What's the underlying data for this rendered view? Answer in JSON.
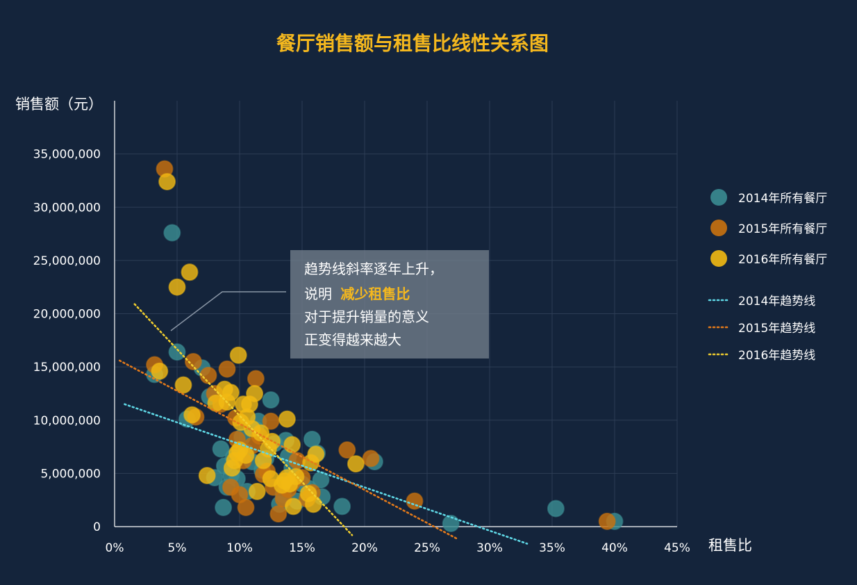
{
  "chart_data": {
    "type": "scatter",
    "title": "餐厅销售额与租售比线性关系图",
    "xlabel": "租售比",
    "ylabel": "销售额（元）",
    "xlim": [
      0,
      45
    ],
    "ylim": [
      0,
      40000000
    ],
    "x_ticks": [
      0,
      5,
      10,
      15,
      20,
      25,
      30,
      35,
      40,
      45
    ],
    "x_tick_labels": [
      "0%",
      "5%",
      "10%",
      "15%",
      "20%",
      "25%",
      "30%",
      "35%",
      "40%",
      "45%"
    ],
    "y_ticks": [
      0,
      5000000,
      10000000,
      15000000,
      20000000,
      25000000,
      30000000,
      35000000
    ],
    "y_tick_labels": [
      "0",
      "5,000,000",
      "10,000,000",
      "15,000,000",
      "20,000,000",
      "25,000,000",
      "30,000,000",
      "35,000,000"
    ],
    "grid": true,
    "legend_position": "right",
    "annotation": {
      "line1": "趋势线斜率逐年上升，",
      "line2_prefix": "说明 ",
      "line2_highlight": "减少租售比",
      "line3": "对于提升销量的意义",
      "line4": "正变得越来越大"
    },
    "series": [
      {
        "name": "2014年所有餐厅",
        "color": "#3a8c92",
        "points": [
          [
            3.2,
            14300000
          ],
          [
            4.6,
            27600000
          ],
          [
            5.0,
            16400000
          ],
          [
            5.8,
            10100000
          ],
          [
            7.0,
            14900000
          ],
          [
            7.6,
            12200000
          ],
          [
            8.0,
            4600000
          ],
          [
            8.5,
            7300000
          ],
          [
            8.8,
            5700000
          ],
          [
            8.7,
            1800000
          ],
          [
            9.0,
            3700000
          ],
          [
            9.3,
            4800000
          ],
          [
            9.5,
            6500000
          ],
          [
            9.8,
            4500000
          ],
          [
            10.2,
            8400000
          ],
          [
            10.5,
            7000000
          ],
          [
            10.6,
            3300000
          ],
          [
            11.0,
            6100000
          ],
          [
            11.3,
            9100000
          ],
          [
            11.5,
            9900000
          ],
          [
            11.8,
            5300000
          ],
          [
            12.1,
            6400000
          ],
          [
            12.5,
            11900000
          ],
          [
            12.8,
            7800000
          ],
          [
            13.2,
            2100000
          ],
          [
            13.5,
            3000000
          ],
          [
            13.7,
            8100000
          ],
          [
            13.9,
            6600000
          ],
          [
            14.2,
            5500000
          ],
          [
            14.6,
            2400000
          ],
          [
            15.0,
            4000000
          ],
          [
            15.5,
            3600000
          ],
          [
            15.8,
            8200000
          ],
          [
            16.2,
            6900000
          ],
          [
            16.5,
            4400000
          ],
          [
            16.6,
            2800000
          ],
          [
            18.2,
            1900000
          ],
          [
            20.8,
            6100000
          ],
          [
            26.9,
            300000
          ],
          [
            35.3,
            1700000
          ],
          [
            40.0,
            500000
          ]
        ]
      },
      {
        "name": "2015年所有餐厅",
        "color": "#c9720f",
        "points": [
          [
            3.2,
            15200000
          ],
          [
            4.0,
            33600000
          ],
          [
            6.3,
            15500000
          ],
          [
            6.5,
            10300000
          ],
          [
            7.5,
            14200000
          ],
          [
            8.0,
            12500000
          ],
          [
            8.5,
            11500000
          ],
          [
            9.0,
            14800000
          ],
          [
            9.3,
            3700000
          ],
          [
            9.7,
            10200000
          ],
          [
            9.8,
            8200000
          ],
          [
            10.0,
            3000000
          ],
          [
            10.3,
            6200000
          ],
          [
            10.5,
            1800000
          ],
          [
            11.0,
            7600000
          ],
          [
            11.3,
            13900000
          ],
          [
            11.6,
            8500000
          ],
          [
            11.9,
            4900000
          ],
          [
            12.2,
            5200000
          ],
          [
            12.5,
            9900000
          ],
          [
            12.7,
            3700000
          ],
          [
            13.1,
            1200000
          ],
          [
            13.5,
            2600000
          ],
          [
            13.9,
            3500000
          ],
          [
            14.2,
            4100000
          ],
          [
            14.6,
            6200000
          ],
          [
            15.0,
            4600000
          ],
          [
            15.4,
            2600000
          ],
          [
            15.8,
            3200000
          ],
          [
            18.6,
            7200000
          ],
          [
            20.5,
            6400000
          ],
          [
            24.0,
            2400000
          ],
          [
            39.4,
            500000
          ]
        ]
      },
      {
        "name": "2016年所有餐厅",
        "color": "#f2ba13",
        "points": [
          [
            3.6,
            14600000
          ],
          [
            4.2,
            32400000
          ],
          [
            5.0,
            22500000
          ],
          [
            5.5,
            13300000
          ],
          [
            6.0,
            23900000
          ],
          [
            6.2,
            10500000
          ],
          [
            7.4,
            4800000
          ],
          [
            8.1,
            11600000
          ],
          [
            8.8,
            12900000
          ],
          [
            9.0,
            11700000
          ],
          [
            9.3,
            12600000
          ],
          [
            9.4,
            5500000
          ],
          [
            9.6,
            6200000
          ],
          [
            9.8,
            6900000
          ],
          [
            9.9,
            16100000
          ],
          [
            10.0,
            7200000
          ],
          [
            10.1,
            9800000
          ],
          [
            10.3,
            11500000
          ],
          [
            10.5,
            6700000
          ],
          [
            10.6,
            10300000
          ],
          [
            10.8,
            11500000
          ],
          [
            11.0,
            9200000
          ],
          [
            11.2,
            12500000
          ],
          [
            11.4,
            3300000
          ],
          [
            11.7,
            8800000
          ],
          [
            11.9,
            6200000
          ],
          [
            12.3,
            7300000
          ],
          [
            12.5,
            4500000
          ],
          [
            12.6,
            8000000
          ],
          [
            13.4,
            3900000
          ],
          [
            13.6,
            4300000
          ],
          [
            13.8,
            4600000
          ],
          [
            14.0,
            4000000
          ],
          [
            14.2,
            7700000
          ],
          [
            14.3,
            1900000
          ],
          [
            14.5,
            4700000
          ],
          [
            15.5,
            3100000
          ],
          [
            15.7,
            6000000
          ],
          [
            15.9,
            2100000
          ],
          [
            16.1,
            6800000
          ],
          [
            19.3,
            5900000
          ],
          [
            13.8,
            10100000
          ]
        ]
      }
    ],
    "trendlines": [
      {
        "name": "2014年趋势线",
        "color": "#5fd8e6",
        "start": [
          0.8,
          11500000
        ],
        "end": [
          33,
          -1600000
        ]
      },
      {
        "name": "2015年趋势线",
        "color": "#e47a1a",
        "start": [
          0.4,
          15600000
        ],
        "end": [
          27.5,
          -1200000
        ]
      },
      {
        "name": "2016年趋势线",
        "color": "#f2cf2e",
        "start": [
          1.6,
          20900000
        ],
        "end": [
          19,
          -800000
        ]
      }
    ]
  }
}
